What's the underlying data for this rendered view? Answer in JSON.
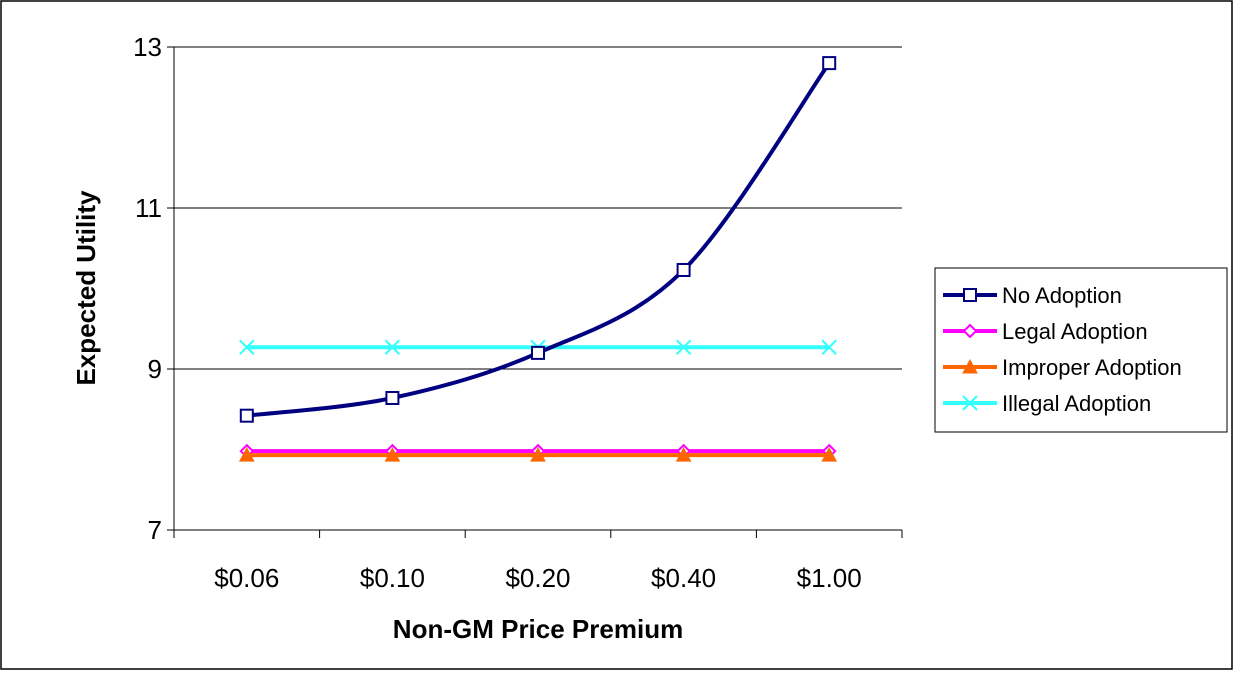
{
  "chart_data": {
    "type": "line",
    "xlabel": "Non-GM Price Premium",
    "ylabel": "Expected Utility",
    "categories": [
      "$0.06",
      "$0.10",
      "$0.20",
      "$0.40",
      "$1.00"
    ],
    "ylim": [
      7,
      13
    ],
    "yticks": [
      "7",
      "9",
      "11",
      "13"
    ],
    "ytick_values": [
      7,
      9,
      11,
      13
    ],
    "grid": true,
    "legend_position": "right",
    "series": [
      {
        "name": "No Adoption",
        "values": [
          8.42,
          8.64,
          9.2,
          10.23,
          12.8
        ],
        "color": "#000080",
        "marker": "square"
      },
      {
        "name": "Legal Adoption",
        "values": [
          7.98,
          7.98,
          7.98,
          7.98,
          7.98
        ],
        "color": "#ff00ff",
        "marker": "diamond"
      },
      {
        "name": "Improper Adoption",
        "values": [
          7.93,
          7.93,
          7.93,
          7.93,
          7.93
        ],
        "color": "#ff6600",
        "marker": "triangle"
      },
      {
        "name": "Illegal Adoption",
        "values": [
          9.27,
          9.27,
          9.27,
          9.27,
          9.27
        ],
        "color": "#33ffff",
        "marker": "x"
      }
    ]
  }
}
